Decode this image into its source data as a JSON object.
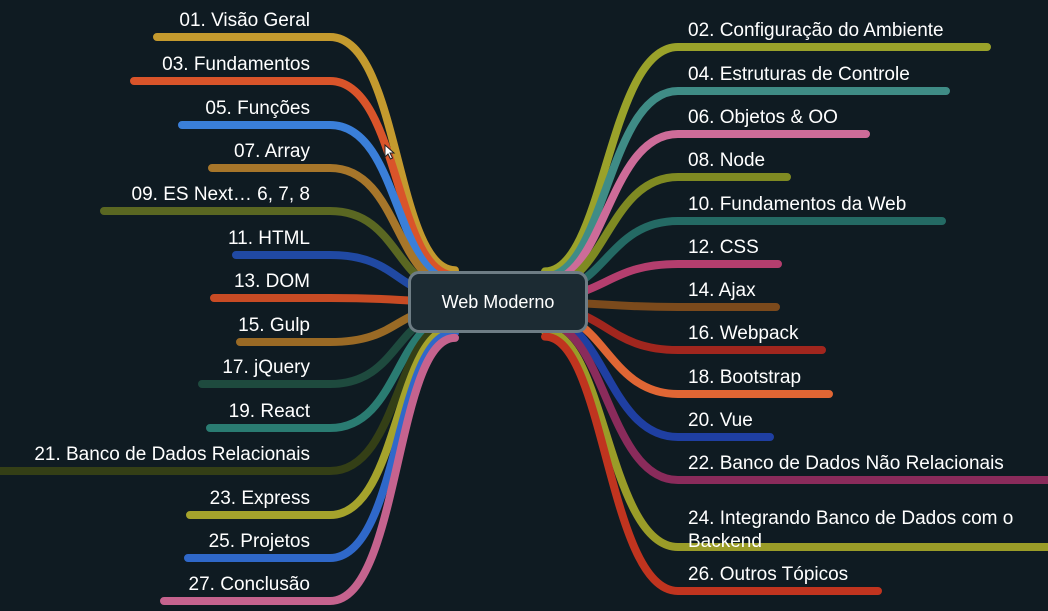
{
  "central": {
    "label": "Web Moderno"
  },
  "left_branches": [
    {
      "label": "01. Visão Geral",
      "color": "#c49a2e"
    },
    {
      "label": "03. Fundamentos",
      "color": "#d9542a"
    },
    {
      "label": "05. Funções",
      "color": "#3a7fd9"
    },
    {
      "label": "07. Array",
      "color": "#a7762a"
    },
    {
      "label": "09. ES Next… 6, 7, 8",
      "color": "#5a6722"
    },
    {
      "label": "11. HTML",
      "color": "#2049a3"
    },
    {
      "label": "13. DOM",
      "color": "#c84b24"
    },
    {
      "label": "15. Gulp",
      "color": "#9a6a25"
    },
    {
      "label": "17. jQuery",
      "color": "#1e4a3e"
    },
    {
      "label": "19. React",
      "color": "#2a7c72"
    },
    {
      "label": "21. Banco de Dados Relacionais",
      "color": "#343f16"
    },
    {
      "label": "23. Express",
      "color": "#a5a32c"
    },
    {
      "label": "25. Projetos",
      "color": "#2f68c9"
    },
    {
      "label": "27. Conclusão",
      "color": "#c5638e"
    }
  ],
  "right_branches": [
    {
      "label": "02. Configuração do Ambiente",
      "color": "#9aa22a"
    },
    {
      "label": "04. Estruturas de Controle",
      "color": "#3f8c86"
    },
    {
      "label": "06. Objetos & OO",
      "color": "#cd6c99"
    },
    {
      "label": "08. Node",
      "color": "#7f8a22"
    },
    {
      "label": "10. Fundamentos da Web",
      "color": "#246a64"
    },
    {
      "label": "12. CSS",
      "color": "#b43e6e"
    },
    {
      "label": "14. Ajax",
      "color": "#7b4a1c"
    },
    {
      "label": "16. Webpack",
      "color": "#a1261e"
    },
    {
      "label": "18. Bootstrap",
      "color": "#e06634"
    },
    {
      "label": "20. Vue",
      "color": "#1f3fa2"
    },
    {
      "label": "22. Banco de Dados Não Relacionais",
      "color": "#8a2b5b"
    },
    {
      "label": "24. Integrando Banco de Dados com o Backend",
      "color": "#9a9c28"
    },
    {
      "label": "26. Outros Tópicos",
      "color": "#c0341f"
    }
  ]
}
